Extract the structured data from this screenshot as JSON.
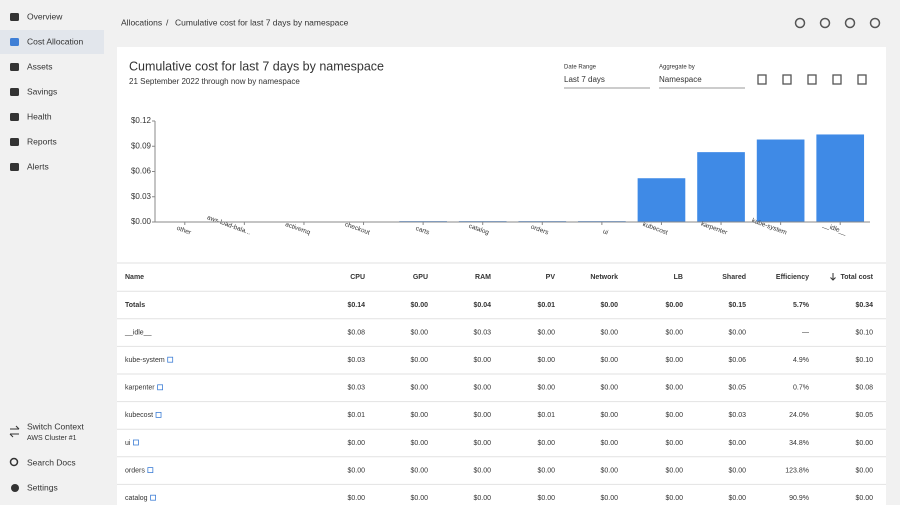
{
  "nav": {
    "items": [
      "Overview",
      "Cost Allocation",
      "Assets",
      "Savings",
      "Health",
      "Reports",
      "Alerts"
    ],
    "active": "Cost Allocation",
    "context_label": "Switch Context",
    "context_value": "AWS Cluster #1",
    "search": "Search Docs",
    "settings": "Settings"
  },
  "breadcrumb": {
    "parent": "Allocations",
    "separator": "/",
    "current": "Cumulative cost for last 7 days by namespace"
  },
  "report": {
    "title": "Cumulative cost for last 7 days by namespace",
    "subtitle": "21 September 2022 through now by namespace",
    "date_range_label": "Date Range",
    "date_range_value": "Last 7 days",
    "aggregate_label": "Aggregate by",
    "aggregate_value": "Namespace"
  },
  "chart_data": {
    "type": "bar",
    "color": "#3f8ae6",
    "categories": [
      "other",
      "aws-load-bala...",
      "activemq",
      "checkout",
      "carts",
      "catalog",
      "orders",
      "ui",
      "kubecost",
      "karpenter",
      "kube-system",
      "__idle__"
    ],
    "values": [
      0.0002,
      0.0002,
      0.0005,
      0.0005,
      0.001,
      0.001,
      0.001,
      0.001,
      0.052,
      0.083,
      0.098,
      0.104
    ],
    "ylim": [
      0,
      0.12
    ],
    "yticks": [
      {
        "value": 0,
        "label": "$0.00"
      },
      {
        "value": 0.03,
        "label": "$0.03"
      },
      {
        "value": 0.06,
        "label": "$0.06"
      },
      {
        "value": 0.09,
        "label": "$0.09"
      },
      {
        "value": 0.12,
        "label": "$0.12"
      }
    ]
  },
  "table": {
    "columns": [
      "Name",
      "CPU",
      "GPU",
      "RAM",
      "PV",
      "Network",
      "LB",
      "Shared",
      "Efficiency",
      "Total cost"
    ],
    "rows": [
      [
        "Totals",
        "$0.14",
        "$0.00",
        "$0.04",
        "$0.01",
        "$0.00",
        "$0.00",
        "$0.15",
        "5.7%",
        "$0.34"
      ],
      [
        "__idle__",
        "$0.08",
        "$0.00",
        "$0.03",
        "$0.00",
        "$0.00",
        "$0.00",
        "$0.00",
        "—",
        "$0.10"
      ],
      [
        "kube-system",
        "$0.03",
        "$0.00",
        "$0.00",
        "$0.00",
        "$0.00",
        "$0.00",
        "$0.06",
        "4.9%",
        "$0.10"
      ],
      [
        "karpenter",
        "$0.03",
        "$0.00",
        "$0.00",
        "$0.00",
        "$0.00",
        "$0.00",
        "$0.05",
        "0.7%",
        "$0.08"
      ],
      [
        "kubecost",
        "$0.01",
        "$0.00",
        "$0.00",
        "$0.01",
        "$0.00",
        "$0.00",
        "$0.03",
        "24.0%",
        "$0.05"
      ],
      [
        "ui",
        "$0.00",
        "$0.00",
        "$0.00",
        "$0.00",
        "$0.00",
        "$0.00",
        "$0.00",
        "34.8%",
        "$0.00"
      ],
      [
        "orders",
        "$0.00",
        "$0.00",
        "$0.00",
        "$0.00",
        "$0.00",
        "$0.00",
        "$0.00",
        "123.8%",
        "$0.00"
      ],
      [
        "catalog",
        "$0.00",
        "$0.00",
        "$0.00",
        "$0.00",
        "$0.00",
        "$0.00",
        "$0.00",
        "90.9%",
        "$0.00"
      ]
    ],
    "linked_rows": [
      2,
      3,
      4,
      5,
      6,
      7
    ]
  }
}
